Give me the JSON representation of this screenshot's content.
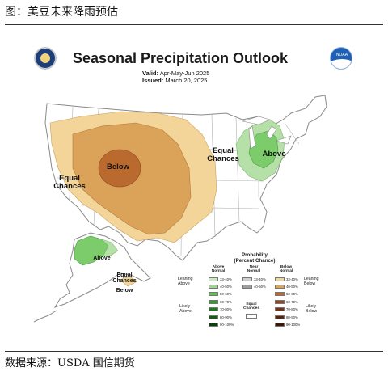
{
  "caption": "图：美豆未来降雨预估",
  "source": "数据来源：USDA 国信期货",
  "map": {
    "title": "Seasonal Precipitation Outlook",
    "valid_label": "Valid:",
    "valid_value": "Apr-May-Jun 2025",
    "issued_label": "Issued:",
    "issued_value": "March 20, 2025",
    "labels": {
      "west_equal": "Equal\nChances",
      "below": "Below",
      "east_equal": "Equal\nChances",
      "above": "Above",
      "alaska_above": "Above",
      "alaska_equal": "Equal\nChances",
      "alaska_below": "Below"
    },
    "colors": {
      "land": "#ffffff",
      "ocean": "#ffffff",
      "border": "#9a9a9a",
      "below_33_40": "#f3d59a",
      "below_40_50": "#dba25a",
      "below_50_60": "#bb6a2f",
      "above_33_40": "#b5e0a8",
      "above_40_50": "#7ccc6c"
    },
    "logos": {
      "left": "doc-seal-icon",
      "right": "noaa-logo-icon",
      "noaa_text": "NOAA"
    }
  },
  "legend": {
    "title": "Probability\n(Percent Chance)",
    "above_header": "Above\nNormal",
    "near_header": "Near\nNormal",
    "below_header": "Below\nNormal",
    "leaning_above": "Leaning\nAbove",
    "likely_above": "Likely\nAbove",
    "leaning_below": "Leaning\nBelow",
    "likely_below": "Likely\nBelow",
    "equal_chances": "Equal\nChances",
    "above_rows": [
      {
        "range": "33-40%",
        "color": "#c9ebbf"
      },
      {
        "range": "40-50%",
        "color": "#9bd98a"
      },
      {
        "range": "50-60%",
        "color": "#5cbf4a"
      },
      {
        "range": "60-70%",
        "color": "#2f9a2a"
      },
      {
        "range": "70-80%",
        "color": "#1e7a1e"
      },
      {
        "range": "80-90%",
        "color": "#145e14"
      },
      {
        "range": "90-100%",
        "color": "#0b3f0b"
      }
    ],
    "near_rows": [
      {
        "range": "33-40%",
        "color": "#cfcfcf"
      },
      {
        "range": "40-50%",
        "color": "#9e9e9e"
      }
    ],
    "below_rows": [
      {
        "range": "33-40%",
        "color": "#f3d59a"
      },
      {
        "range": "40-50%",
        "color": "#dba25a"
      },
      {
        "range": "50-60%",
        "color": "#bb6a2f"
      },
      {
        "range": "60-70%",
        "color": "#944521"
      },
      {
        "range": "70-80%",
        "color": "#773317"
      },
      {
        "range": "80-90%",
        "color": "#5a240f"
      },
      {
        "range": "90-100%",
        "color": "#3e1708"
      }
    ]
  }
}
